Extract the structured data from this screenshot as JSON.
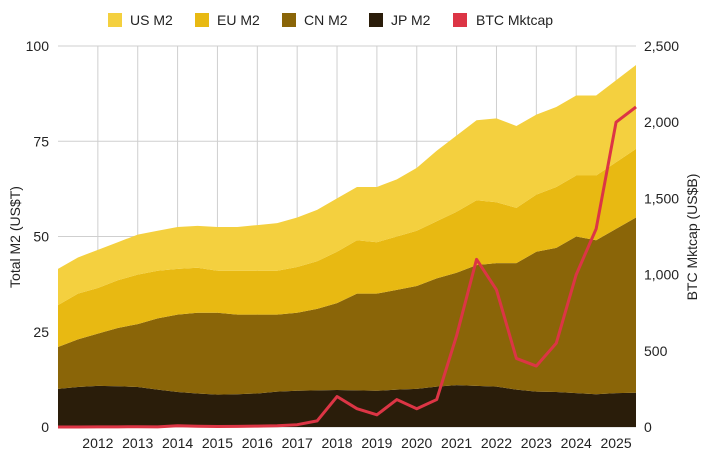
{
  "chart_data": {
    "type": "area",
    "title": "",
    "xlabel": "",
    "ylabel": "Total M2 (US$T)",
    "y2label": "BTC Mktcap (US$B)",
    "xlim": [
      2011.0,
      2025.5
    ],
    "ylim": [
      0,
      100
    ],
    "y2lim": [
      0,
      2500
    ],
    "x_ticks": [
      {
        "value": 2012,
        "label": "2012"
      },
      {
        "value": 2013,
        "label": "2013"
      },
      {
        "value": 2014,
        "label": "2014"
      },
      {
        "value": 2015,
        "label": "2015"
      },
      {
        "value": 2016,
        "label": "2016"
      },
      {
        "value": 2017,
        "label": "2017"
      },
      {
        "value": 2018,
        "label": "2018"
      },
      {
        "value": 2019,
        "label": "2019"
      },
      {
        "value": 2020,
        "label": "2020"
      },
      {
        "value": 2021,
        "label": "2021"
      },
      {
        "value": 2022,
        "label": "2022"
      },
      {
        "value": 2023,
        "label": "2023"
      },
      {
        "value": 2024,
        "label": "2024"
      },
      {
        "value": 2025,
        "label": "2025"
      }
    ],
    "y_ticks": [
      {
        "value": 0,
        "label": "0"
      },
      {
        "value": 25,
        "label": "25"
      },
      {
        "value": 50,
        "label": "50"
      },
      {
        "value": 75,
        "label": "75"
      },
      {
        "value": 100,
        "label": "100"
      }
    ],
    "y2_ticks": [
      {
        "value": 0,
        "label": "0"
      },
      {
        "value": 500,
        "label": "500"
      },
      {
        "value": 1000,
        "label": "1,000"
      },
      {
        "value": 1500,
        "label": "1,500"
      },
      {
        "value": 2000,
        "label": "2,000"
      },
      {
        "value": 2500,
        "label": "2,500"
      }
    ],
    "grid": true,
    "stacked": true,
    "legend_position": "top",
    "legend": [
      {
        "label": "US M2",
        "color": "#F4D03F"
      },
      {
        "label": "EU M2",
        "color": "#E8B912"
      },
      {
        "label": "CN M2",
        "color": "#8A6508"
      },
      {
        "label": "JP M2",
        "color": "#2A1D0A"
      },
      {
        "label": "BTC Mktcap",
        "color": "#DC3545"
      }
    ],
    "x": [
      2011.0,
      2011.5,
      2012.0,
      2012.5,
      2013.0,
      2013.5,
      2014.0,
      2014.5,
      2015.0,
      2015.5,
      2016.0,
      2016.5,
      2017.0,
      2017.5,
      2018.0,
      2018.5,
      2019.0,
      2019.5,
      2020.0,
      2020.5,
      2021.0,
      2021.5,
      2022.0,
      2022.5,
      2023.0,
      2023.5,
      2024.0,
      2024.5,
      2025.0,
      2025.5
    ],
    "series": [
      {
        "name": "JP M2",
        "axis": "left",
        "color": "#2A1D0A",
        "values": [
          10,
          10.5,
          10.8,
          10.7,
          10.5,
          9.8,
          9.2,
          8.8,
          8.5,
          8.6,
          8.8,
          9.3,
          9.5,
          9.6,
          9.7,
          9.6,
          9.5,
          9.8,
          10.0,
          10.6,
          11.0,
          10.8,
          10.6,
          9.8,
          9.3,
          9.2,
          8.9,
          8.6,
          8.9,
          9.0
        ]
      },
      {
        "name": "CN M2",
        "axis": "left",
        "color": "#8A6508",
        "values": [
          11.0,
          12.5,
          13.7,
          15.3,
          16.5,
          18.7,
          20.3,
          21.2,
          21.5,
          20.9,
          20.7,
          20.2,
          20.5,
          21.4,
          22.8,
          25.4,
          25.5,
          26.2,
          27.0,
          28.4,
          29.5,
          31.7,
          32.4,
          33.2,
          36.7,
          37.8,
          41.1,
          40.4,
          43.1,
          46.0
        ]
      },
      {
        "name": "EU M2",
        "axis": "left",
        "color": "#E8B912",
        "values": [
          11.0,
          12.0,
          12.0,
          12.5,
          13.0,
          12.5,
          12.0,
          11.8,
          11.0,
          11.5,
          11.5,
          11.5,
          12.0,
          12.5,
          13.5,
          14.0,
          13.5,
          14.0,
          14.5,
          15.0,
          16.0,
          17.0,
          16.0,
          14.5,
          15.0,
          16.0,
          16.0,
          17.0,
          17.5,
          18.0
        ]
      },
      {
        "name": "US M2",
        "axis": "left",
        "color": "#F4D03F",
        "values": [
          9.5,
          9.5,
          10.0,
          10.0,
          10.5,
          10.5,
          11.0,
          11.0,
          11.5,
          11.5,
          12.0,
          12.5,
          13.0,
          13.5,
          14.0,
          14.0,
          14.5,
          15.0,
          16.5,
          18.5,
          20.0,
          21.0,
          22.0,
          21.5,
          21.0,
          21.0,
          21.0,
          21.0,
          21.5,
          22.0
        ]
      },
      {
        "name": "BTC Mktcap",
        "axis": "right",
        "color": "#DC3545",
        "values": [
          0,
          0,
          1,
          1,
          2,
          1,
          8,
          5,
          3,
          4,
          6,
          8,
          15,
          40,
          200,
          120,
          80,
          180,
          120,
          180,
          600,
          1100,
          900,
          450,
          400,
          550,
          1000,
          1300,
          2000,
          2100
        ]
      }
    ]
  }
}
